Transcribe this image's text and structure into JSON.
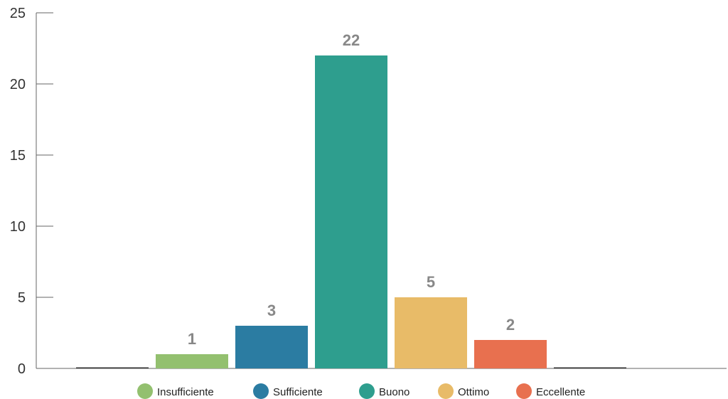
{
  "chart_data": {
    "type": "bar",
    "categories": [
      "",
      "Insufficiente",
      "Sufficiente",
      "Buono",
      "Ottimo",
      "Eccellente",
      ""
    ],
    "values": [
      0,
      1,
      3,
      22,
      5,
      2,
      0
    ],
    "data_labels": [
      "",
      "1",
      "3",
      "22",
      "5",
      "2",
      ""
    ],
    "colors": [
      "#333333",
      "#93C06F",
      "#2B7CA2",
      "#2E9E8E",
      "#E8BB68",
      "#E8704F",
      "#333333"
    ],
    "ylim": [
      0,
      25
    ],
    "yticks": [
      0,
      5,
      10,
      15,
      20,
      25
    ],
    "ytick_labels": [
      "0",
      "5",
      "10",
      "15",
      "20",
      "25"
    ],
    "grid": false,
    "legend_position": "bottom",
    "legend": [
      {
        "label": "Insufficiente",
        "color": "#93C06F"
      },
      {
        "label": "Sufficiente",
        "color": "#2B7CA2"
      },
      {
        "label": "Buono",
        "color": "#2E9E8E"
      },
      {
        "label": "Ottimo",
        "color": "#E8BB68"
      },
      {
        "label": "Eccellente",
        "color": "#E8704F"
      }
    ],
    "title": "",
    "xlabel": "",
    "ylabel": ""
  }
}
